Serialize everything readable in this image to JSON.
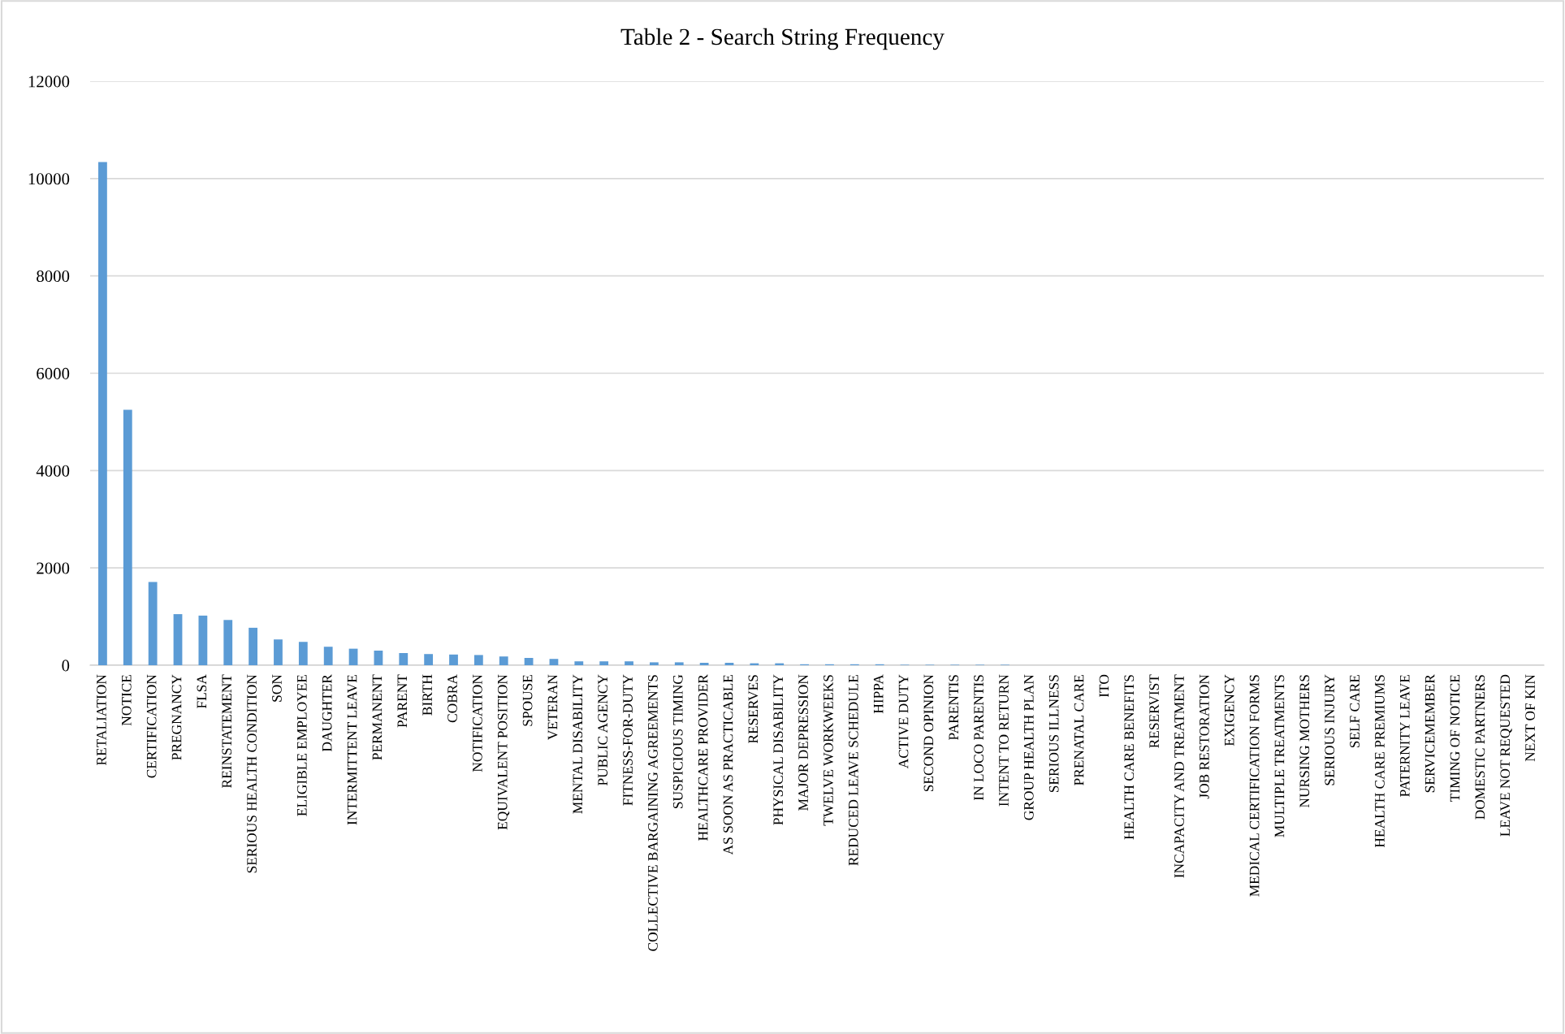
{
  "chart_data": {
    "type": "bar",
    "title": "Table 2 - Search String Frequency",
    "categories": [
      "RETALIATION",
      "NOTICE",
      "CERTIFICATION",
      "PREGNANCY",
      "FLSA",
      "REINSTATEMENT",
      "SERIOUS HEALTH CONDITION",
      "SON",
      "ELIGIBLE EMPLOYEE",
      "DAUGHTER",
      "INTERMITTENT LEAVE",
      "PERMANENT",
      "PARENT",
      "BIRTH",
      "COBRA",
      "NOTIFICATION",
      "EQUIVALENT POSITION",
      "SPOUSE",
      "VETERAN",
      "MENTAL DISABILITY",
      "PUBLIC AGENCY",
      "FITNESS-FOR-DUTY",
      "COLLECTIVE BARGAINING AGREEMENTS",
      "SUSPICIOUS TIMING",
      "HEALTHCARE PROVIDER",
      "AS SOON AS PRACTICABLE",
      "RESERVES",
      "PHYSICAL DISABILITY",
      "MAJOR DEPRESSION",
      "TWELVE WORKWEEKS",
      "REDUCED LEAVE SCHEDULE",
      "HIPPA",
      "ACTIVE DUTY",
      "SECOND OPINION",
      "PARENTIS",
      "IN LOCO PARENTIS",
      "INTENT TO RETURN",
      "GROUP HEALTH PLAN",
      "SERIOUS ILLNESS",
      "PRENATAL CARE",
      "ITO",
      "HEALTH CARE BENEFITS",
      "RESERVIST",
      "INCAPACITY AND TREATMENT",
      "JOB RESTORATION",
      "EXIGENCY",
      "MEDICAL CERTIFICATION FORMS",
      "MULTIPLE TREATMENTS",
      "NURSING MOTHERS",
      "SERIOUS INJURY",
      "SELF CARE",
      "HEALTH CARE PREMIUMS",
      "PATERNITY LEAVE",
      "SERVICEMEMBER",
      "TIMING OF NOTICE",
      "DOMESTIC PARTNERS",
      "LEAVE NOT REQUESTED",
      "NEXT OF KIN"
    ],
    "values": [
      10340,
      5250,
      1710,
      1050,
      1020,
      930,
      770,
      530,
      480,
      380,
      340,
      300,
      250,
      230,
      220,
      210,
      180,
      150,
      130,
      80,
      80,
      80,
      60,
      60,
      50,
      50,
      40,
      40,
      20,
      20,
      20,
      20,
      10,
      10,
      10,
      10,
      10,
      0,
      0,
      0,
      0,
      0,
      0,
      0,
      0,
      0,
      0,
      0,
      0,
      0,
      0,
      0,
      0,
      0,
      0,
      0,
      0,
      0
    ],
    "color": "#5b9bd5",
    "ylim": [
      0,
      12000
    ],
    "yticks": [
      0,
      2000,
      4000,
      6000,
      8000,
      10000,
      12000
    ],
    "grid": "y"
  }
}
